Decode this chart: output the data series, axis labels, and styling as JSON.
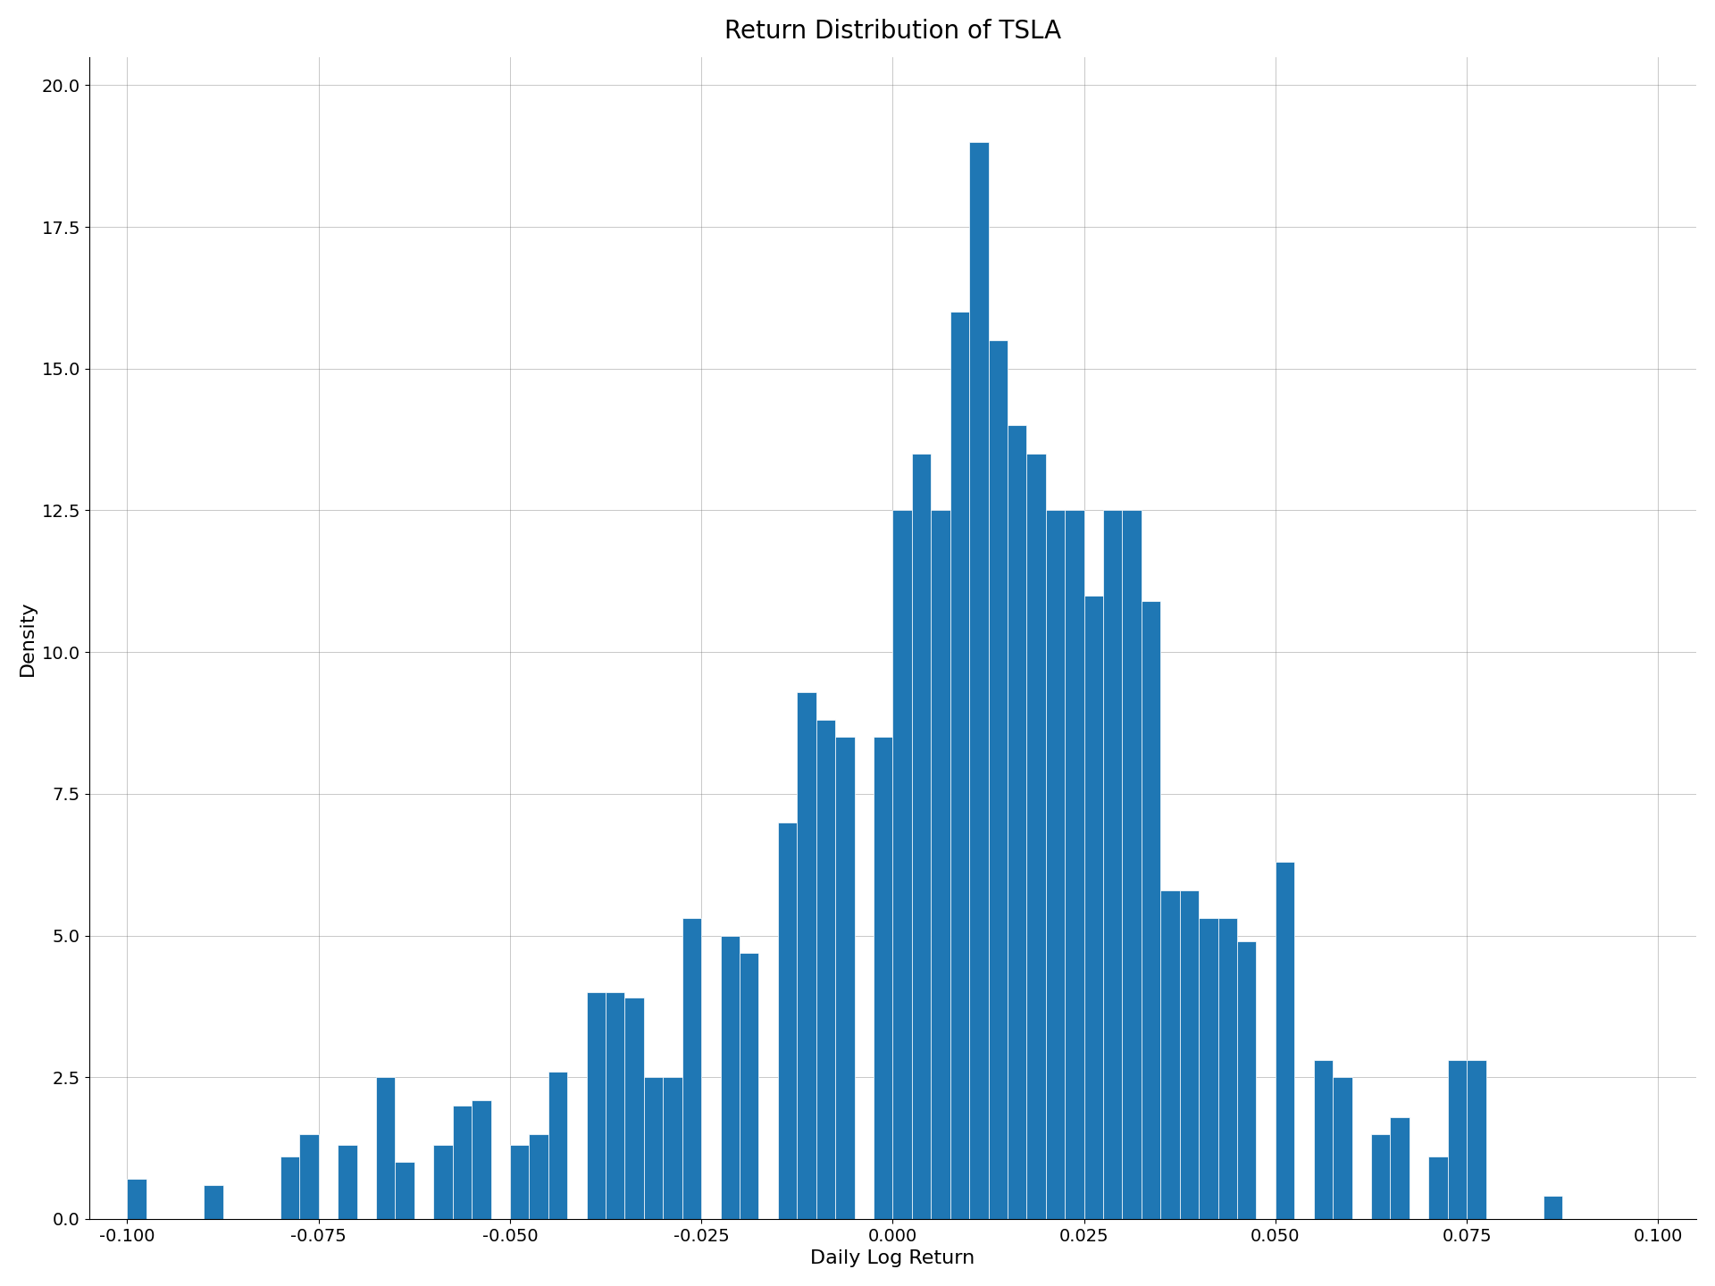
{
  "title": "Return Distribution of TSLA",
  "xlabel": "Daily Log Return",
  "ylabel": "Density",
  "bar_color": "#1f77b4",
  "xlim": [
    -0.105,
    0.105
  ],
  "ylim": [
    0,
    20.5
  ],
  "yticks": [
    0.0,
    2.5,
    5.0,
    7.5,
    10.0,
    12.5,
    15.0,
    17.5,
    20.0
  ],
  "xticks": [
    -0.1,
    -0.075,
    -0.05,
    -0.025,
    0.0,
    0.025,
    0.05,
    0.075,
    0.1
  ],
  "title_fontsize": 20,
  "label_fontsize": 16,
  "tick_fontsize": 14,
  "background_color": "#ffffff",
  "bin_width": 0.0025,
  "bin_centers": [
    -0.09875,
    -0.09625,
    -0.09375,
    -0.09125,
    -0.08875,
    -0.08625,
    -0.08375,
    -0.08125,
    -0.07875,
    -0.07625,
    -0.07375,
    -0.07125,
    -0.06875,
    -0.06625,
    -0.06375,
    -0.06125,
    -0.05875,
    -0.05625,
    -0.05375,
    -0.05125,
    -0.04875,
    -0.04625,
    -0.04375,
    -0.04125,
    -0.03875,
    -0.03625,
    -0.03375,
    -0.03125,
    -0.02875,
    -0.02625,
    -0.02375,
    -0.02125,
    -0.01875,
    -0.01625,
    -0.01375,
    -0.01125,
    -0.00875,
    -0.00625,
    -0.00375,
    -0.00125,
    0.00125,
    0.00375,
    0.00625,
    0.00875,
    0.01125,
    0.01375,
    0.01625,
    0.01875,
    0.02125,
    0.02375,
    0.02625,
    0.02875,
    0.03125,
    0.03375,
    0.03625,
    0.03875,
    0.04125,
    0.04375,
    0.04625,
    0.04875,
    0.05125,
    0.05375,
    0.05625,
    0.05875,
    0.06125,
    0.06375,
    0.06625,
    0.06875,
    0.07125,
    0.07375,
    0.07625,
    0.07875,
    0.08125,
    0.08375,
    0.08625,
    0.08875,
    0.09125,
    0.09375,
    0.09625,
    0.09875
  ],
  "densities": [
    0.7,
    0.0,
    0.0,
    0.0,
    0.6,
    0.0,
    0.0,
    0.0,
    1.1,
    1.5,
    0.0,
    1.3,
    0.0,
    2.5,
    1.0,
    0.0,
    1.3,
    2.0,
    2.1,
    0.0,
    1.3,
    1.5,
    2.6,
    0.0,
    4.0,
    4.0,
    3.9,
    2.5,
    2.5,
    5.3,
    0.0,
    5.0,
    4.7,
    0.0,
    7.0,
    9.3,
    8.8,
    8.5,
    0.0,
    8.5,
    12.5,
    13.5,
    12.5,
    16.0,
    19.0,
    15.5,
    14.0,
    13.5,
    12.5,
    12.5,
    11.0,
    12.5,
    12.5,
    10.9,
    5.8,
    5.8,
    5.3,
    5.3,
    4.9,
    0.0,
    6.3,
    0.0,
    2.8,
    2.5,
    0.0,
    1.5,
    1.8,
    0.0,
    1.1,
    2.8,
    2.8,
    0.0,
    0.0,
    0.0,
    0.4,
    0.0,
    0.0,
    0.0,
    0.0,
    0.0
  ]
}
